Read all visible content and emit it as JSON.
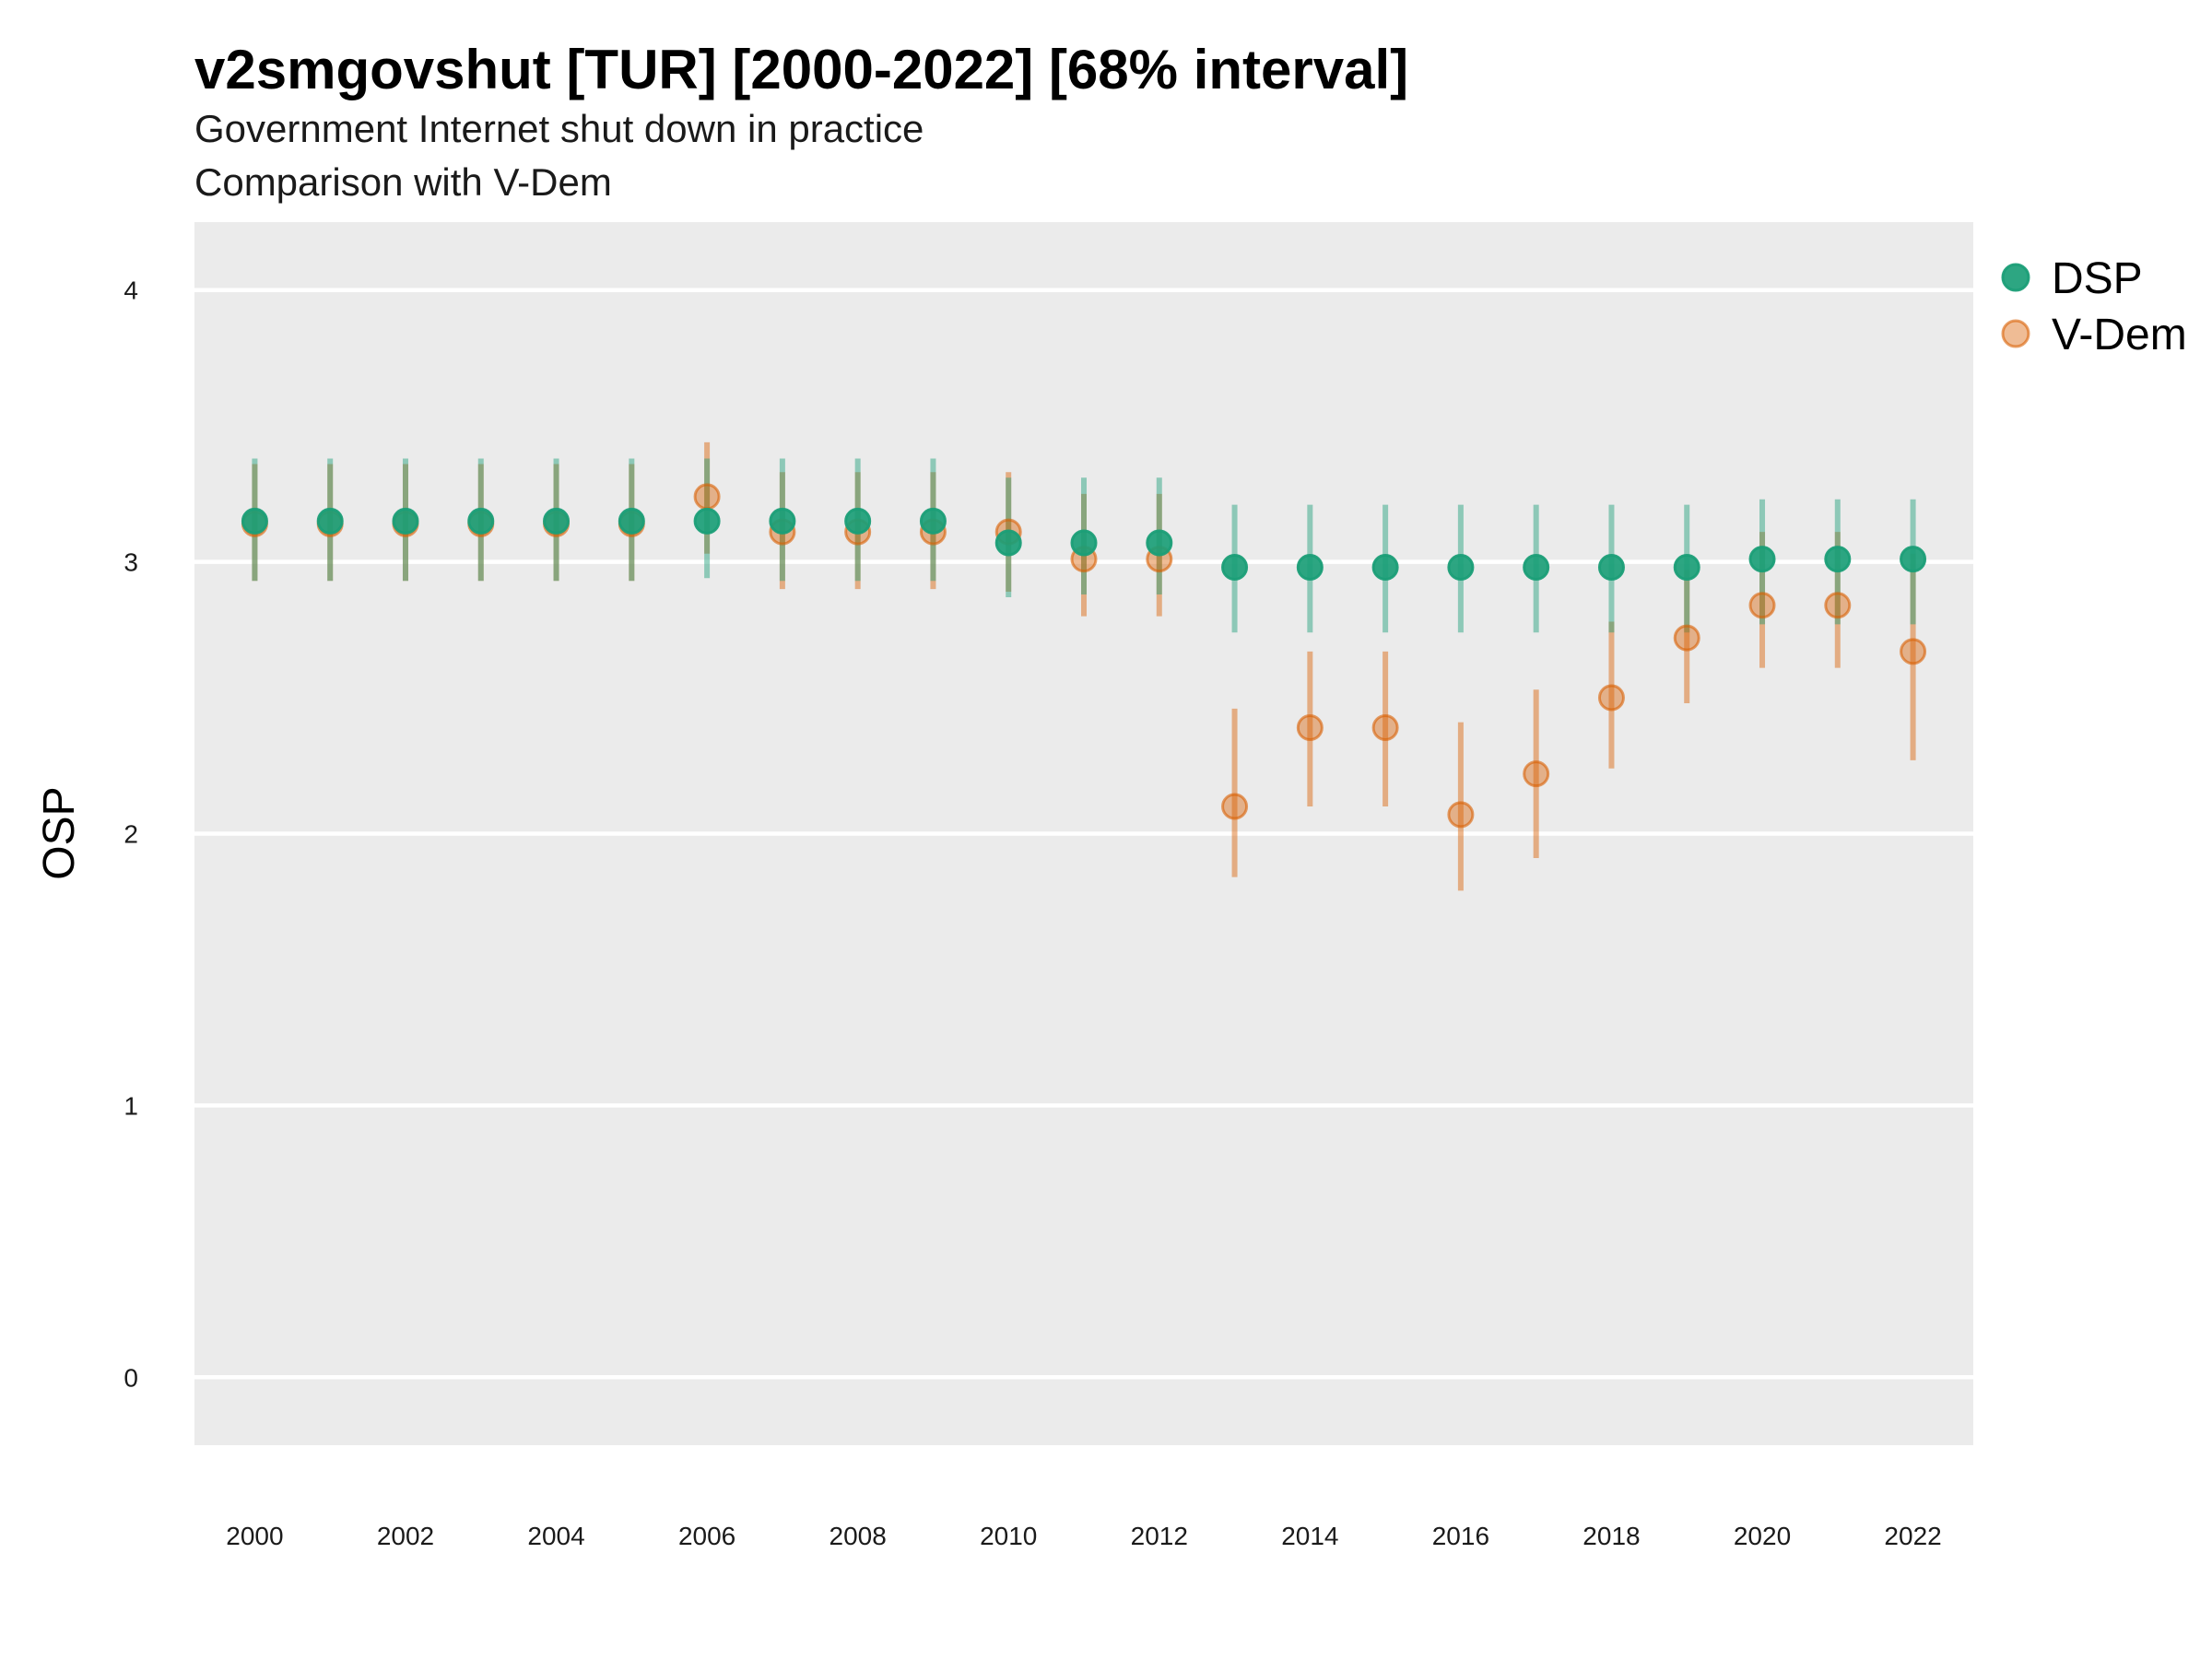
{
  "chart_data": {
    "type": "scatter",
    "title": "v2smgovshut [TUR] [2000-2022] [68% interval]",
    "subtitle_lines": [
      "Government Internet shut down in practice",
      "Comparison with V-Dem"
    ],
    "xlabel": "",
    "ylabel": "OSP",
    "ylim": [
      -0.25,
      4.25
    ],
    "y_ticks": [
      0,
      1,
      2,
      3,
      4
    ],
    "x_ticks": [
      2000,
      2002,
      2004,
      2006,
      2008,
      2010,
      2012,
      2014,
      2016,
      2018,
      2020,
      2022
    ],
    "x": [
      2000,
      2001,
      2002,
      2003,
      2004,
      2005,
      2006,
      2007,
      2008,
      2009,
      2010,
      2011,
      2012,
      2013,
      2014,
      2015,
      2016,
      2017,
      2018,
      2019,
      2020,
      2021,
      2022
    ],
    "grid": true,
    "legend_position": "right",
    "series": [
      {
        "name": "DSP",
        "color": "#1b9e77",
        "values": [
          3.15,
          3.15,
          3.15,
          3.15,
          3.15,
          3.15,
          3.15,
          3.15,
          3.15,
          3.15,
          3.07,
          3.07,
          3.07,
          2.98,
          2.98,
          2.98,
          2.98,
          2.98,
          2.98,
          2.98,
          3.01,
          3.01,
          3.01
        ],
        "lower": [
          2.93,
          2.93,
          2.93,
          2.93,
          2.93,
          2.93,
          2.94,
          2.93,
          2.93,
          2.93,
          2.87,
          2.88,
          2.88,
          2.74,
          2.74,
          2.74,
          2.74,
          2.74,
          2.74,
          2.74,
          2.77,
          2.77,
          2.77
        ],
        "upper": [
          3.38,
          3.38,
          3.38,
          3.38,
          3.38,
          3.38,
          3.38,
          3.38,
          3.38,
          3.38,
          3.31,
          3.31,
          3.31,
          3.21,
          3.21,
          3.21,
          3.21,
          3.21,
          3.21,
          3.21,
          3.23,
          3.23,
          3.23
        ]
      },
      {
        "name": "V-Dem",
        "color": "#d95f02",
        "values": [
          3.14,
          3.14,
          3.14,
          3.14,
          3.14,
          3.14,
          3.24,
          3.11,
          3.11,
          3.11,
          3.11,
          3.01,
          3.01,
          2.1,
          2.39,
          2.39,
          2.07,
          2.22,
          2.5,
          2.72,
          2.84,
          2.84,
          2.67
        ],
        "lower": [
          2.93,
          2.93,
          2.93,
          2.93,
          2.93,
          2.93,
          3.03,
          2.9,
          2.9,
          2.9,
          2.89,
          2.8,
          2.8,
          1.84,
          2.1,
          2.1,
          1.79,
          1.91,
          2.24,
          2.48,
          2.61,
          2.61,
          2.27
        ],
        "upper": [
          3.36,
          3.36,
          3.36,
          3.36,
          3.36,
          3.36,
          3.44,
          3.33,
          3.33,
          3.33,
          3.33,
          3.25,
          3.25,
          2.46,
          2.67,
          2.67,
          2.41,
          2.53,
          2.78,
          2.97,
          3.11,
          3.11,
          3.03
        ]
      }
    ]
  }
}
